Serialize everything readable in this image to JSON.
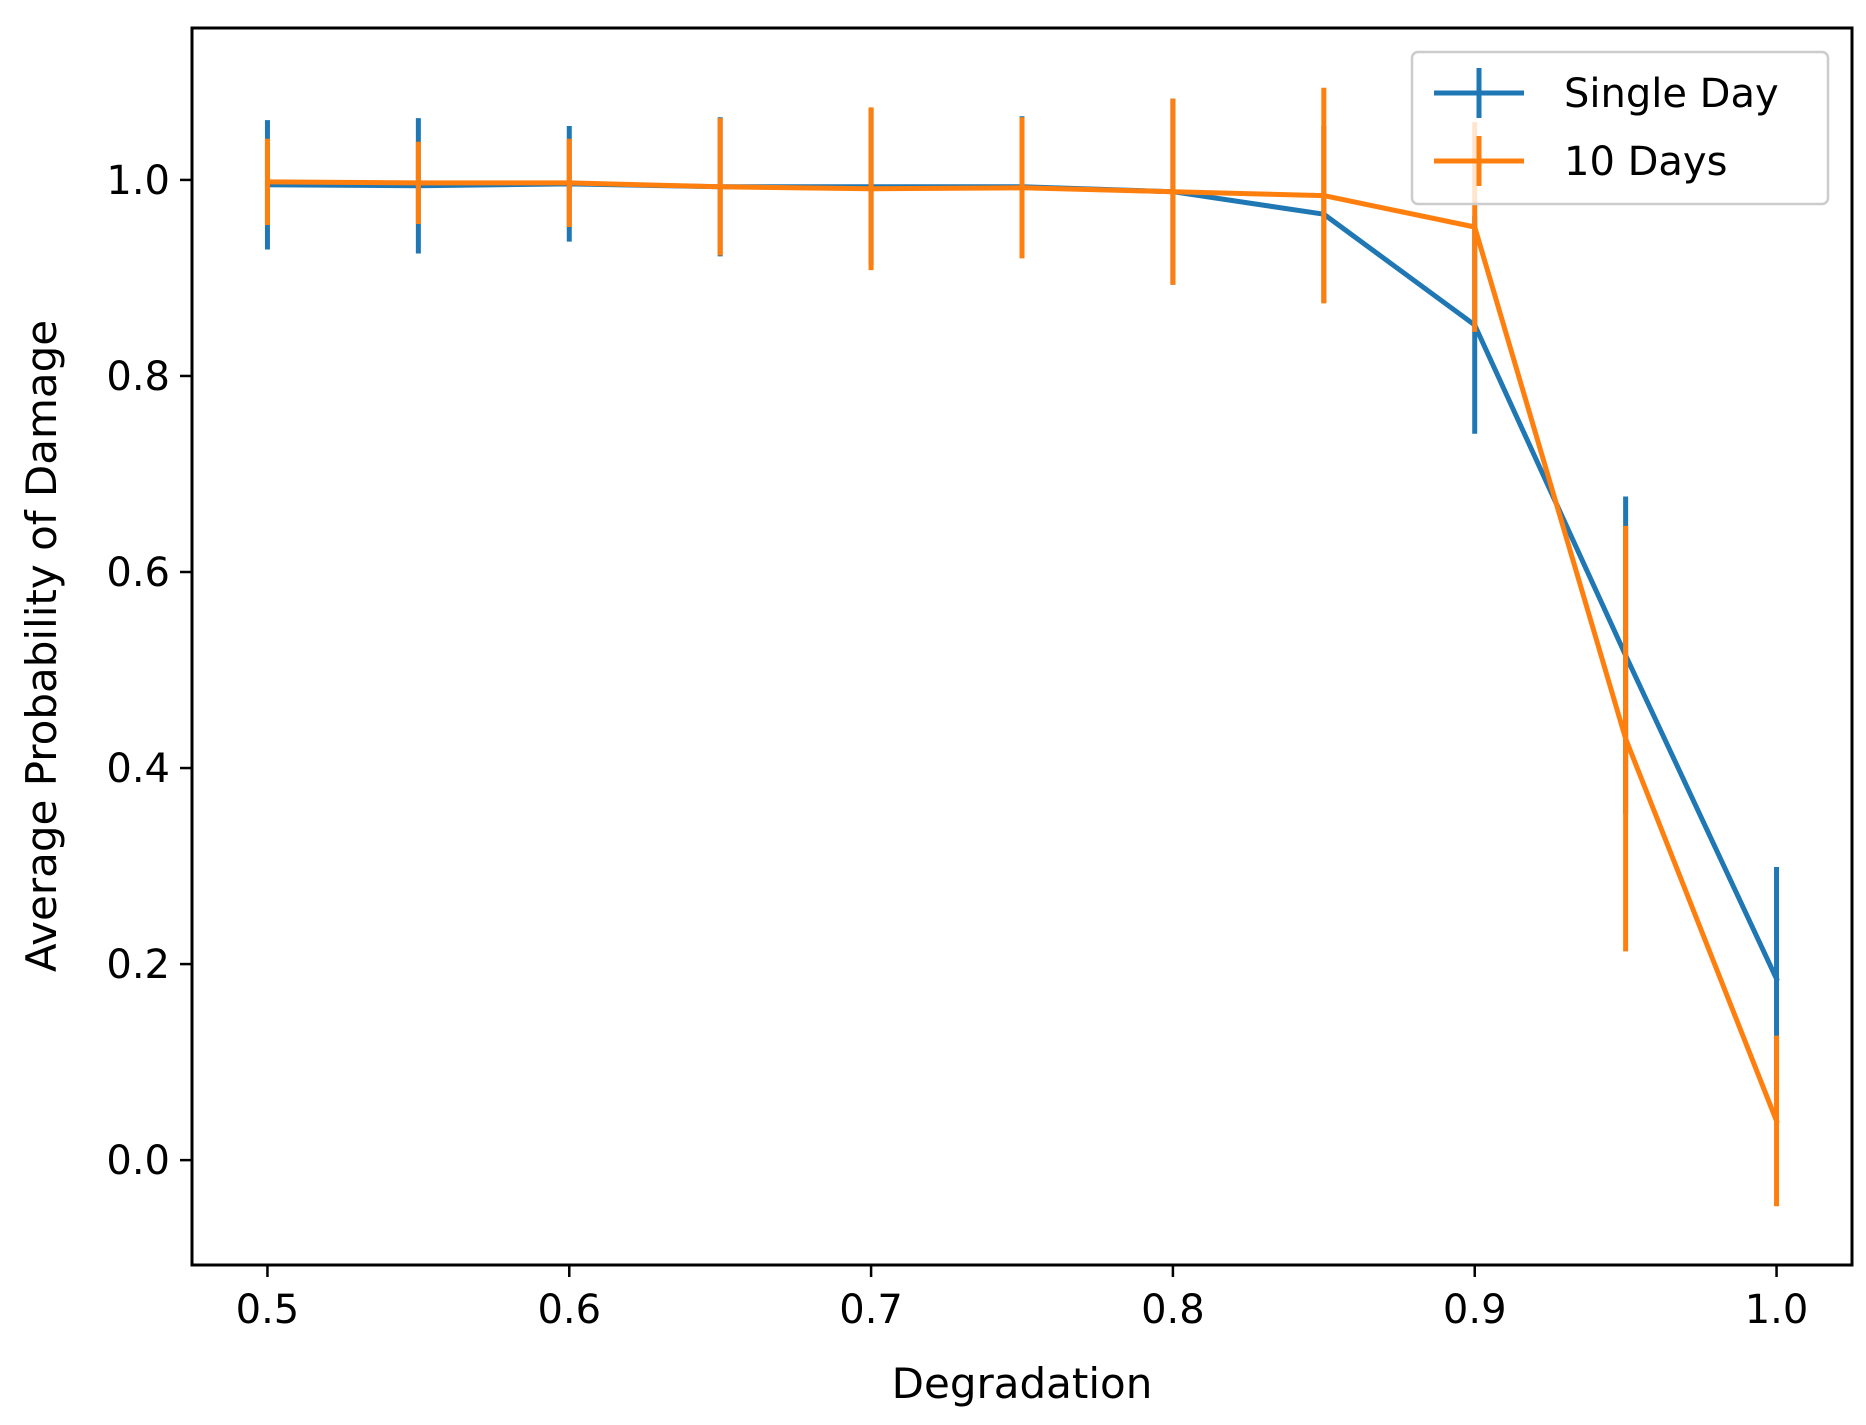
{
  "chart_data": {
    "type": "line",
    "title": "",
    "xlabel": "Degradation",
    "ylabel": "Average Probability of Damage",
    "xlim": [
      0.475,
      1.025
    ],
    "ylim": [
      -0.107,
      1.155
    ],
    "grid": false,
    "legend_position": "top-right",
    "x": [
      0.5,
      0.55,
      0.6,
      0.65,
      0.7,
      0.75,
      0.8,
      0.85,
      0.9,
      0.95,
      1.0
    ],
    "x_ticks": [
      {
        "value": 0.5,
        "label": "0.5"
      },
      {
        "value": 0.6,
        "label": "0.6"
      },
      {
        "value": 0.7,
        "label": "0.7"
      },
      {
        "value": 0.8,
        "label": "0.8"
      },
      {
        "value": 0.9,
        "label": "0.9"
      },
      {
        "value": 1.0,
        "label": "1.0"
      }
    ],
    "y_ticks": [
      {
        "value": 0.0,
        "label": "0.0"
      },
      {
        "value": 0.2,
        "label": "0.2"
      },
      {
        "value": 0.4,
        "label": "0.4"
      },
      {
        "value": 0.6,
        "label": "0.6"
      },
      {
        "value": 0.8,
        "label": "0.8"
      },
      {
        "value": 1.0,
        "label": "1.0"
      }
    ],
    "series": [
      {
        "name": "Single Day",
        "color": "#1f77b4",
        "values": [
          0.995,
          0.994,
          0.996,
          0.993,
          0.993,
          0.993,
          0.988,
          0.965,
          0.852,
          0.515,
          0.185
        ],
        "errors": [
          0.066,
          0.069,
          0.059,
          0.071,
          0.08,
          0.072,
          0.095,
          0.09,
          0.111,
          0.162,
          0.114
        ]
      },
      {
        "name": "10 Days",
        "color": "#ff7f0e",
        "values": [
          0.998,
          0.997,
          0.997,
          0.993,
          0.991,
          0.992,
          0.988,
          0.984,
          0.952,
          0.43,
          0.04
        ],
        "errors": [
          0.044,
          0.042,
          0.045,
          0.07,
          0.083,
          0.072,
          0.095,
          0.11,
          0.107,
          0.217,
          0.087
        ]
      }
    ]
  }
}
